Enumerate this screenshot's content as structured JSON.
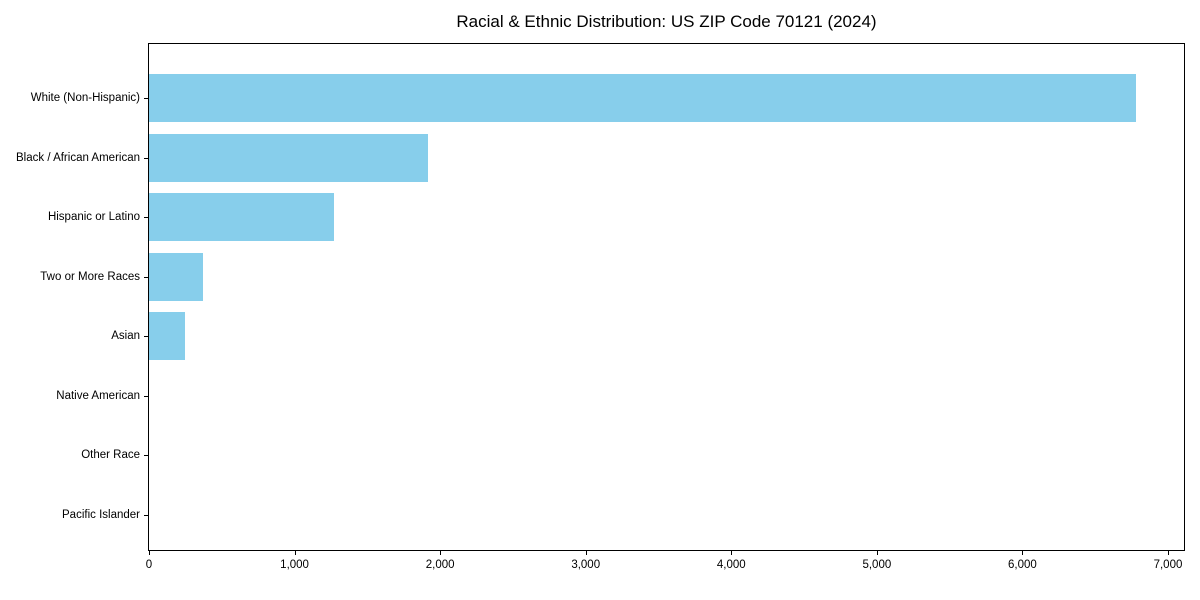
{
  "title": "Racial & Ethnic Distribution: US ZIP Code 70121 (2024)",
  "chart_data": {
    "type": "bar",
    "orientation": "horizontal",
    "title": "Racial & Ethnic Distribution: US ZIP Code 70121 (2024)",
    "xlabel": "",
    "ylabel": "",
    "categories": [
      "White (Non-Hispanic)",
      "Black / African American",
      "Hispanic or Latino",
      "Two or More Races",
      "Asian",
      "Native American",
      "Other Race",
      "Pacific Islander"
    ],
    "values": [
      6780,
      1920,
      1270,
      370,
      245,
      0,
      0,
      0
    ],
    "xlim": [
      0,
      7110
    ],
    "x_ticks": [
      0,
      1000,
      2000,
      3000,
      4000,
      5000,
      6000,
      7000
    ],
    "x_tick_labels": [
      "0",
      "1,000",
      "2,000",
      "3,000",
      "4,000",
      "5,000",
      "6,000",
      "7,000"
    ],
    "bar_color": "#87CEEB",
    "grid": false,
    "legend": null
  }
}
